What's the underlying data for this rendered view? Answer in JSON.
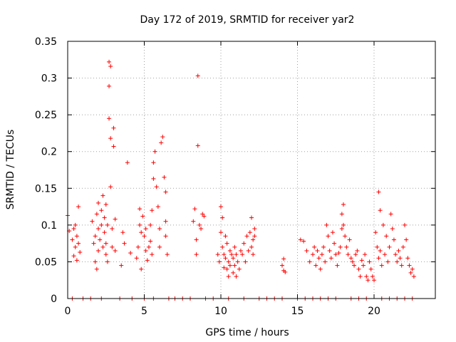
{
  "chart_data": {
    "type": "scatter",
    "title": "Day 172 of 2019, SRMTID for receiver yar2",
    "xlabel": "GPS time / hours",
    "ylabel": "SRMTID / TECUs",
    "xlim": [
      0,
      24
    ],
    "ylim": [
      0,
      0.35
    ],
    "grid": true,
    "marker": "plus",
    "color": "#ff0000",
    "xticks": [
      0,
      5,
      10,
      15,
      20
    ],
    "xtick_labels": [
      "0",
      "5",
      "10",
      "15",
      "20"
    ],
    "yticks": [
      0,
      0.05,
      0.1,
      0.15,
      0.2,
      0.25,
      0.3,
      0.35
    ],
    "ytick_labels": [
      "0",
      "0.05",
      "0.1",
      "0.15",
      "0.2",
      "0.25",
      "0.3",
      "0.35"
    ],
    "series": [
      {
        "name": "yar2",
        "x": [
          0.0,
          0.1,
          0.3,
          0.4,
          0.4,
          0.5,
          0.5,
          0.6,
          0.6,
          0.7,
          0.7,
          0.8,
          1.6,
          1.7,
          1.8,
          1.8,
          1.9,
          1.9,
          2.0,
          2.0,
          2.0,
          2.1,
          2.2,
          2.2,
          2.3,
          2.3,
          2.4,
          2.4,
          2.5,
          2.5,
          2.5,
          2.6,
          2.6,
          2.7,
          2.7,
          2.7,
          2.8,
          2.8,
          2.8,
          2.9,
          2.9,
          3.0,
          3.0,
          3.1,
          3.1,
          3.5,
          3.6,
          3.7,
          3.9,
          4.1,
          4.5,
          4.6,
          4.7,
          4.7,
          4.8,
          4.8,
          4.9,
          5.0,
          5.1,
          5.1,
          5.2,
          5.3,
          5.4,
          5.4,
          5.5,
          5.5,
          5.6,
          5.6,
          5.7,
          5.8,
          5.9,
          6.0,
          6.0,
          6.1,
          6.2,
          6.3,
          6.4,
          6.4,
          6.4,
          6.5,
          8.2,
          8.3,
          8.4,
          8.4,
          8.5,
          8.5,
          8.6,
          8.7,
          8.8,
          8.9,
          9.8,
          9.9,
          10.0,
          10.0,
          10.1,
          10.1,
          10.2,
          10.2,
          10.3,
          10.3,
          10.4,
          10.4,
          10.5,
          10.5,
          10.6,
          10.6,
          10.7,
          10.8,
          10.8,
          10.9,
          10.9,
          11.0,
          11.0,
          11.1,
          11.2,
          11.3,
          11.4,
          11.5,
          11.6,
          11.7,
          11.8,
          11.9,
          12.0,
          12.0,
          12.1,
          12.1,
          12.2,
          12.2,
          14.0,
          14.1,
          14.1,
          14.2,
          15.2,
          15.4,
          15.6,
          15.8,
          16.0,
          16.1,
          16.2,
          16.3,
          16.4,
          16.5,
          16.6,
          16.7,
          16.8,
          16.9,
          17.0,
          17.1,
          17.2,
          17.3,
          17.4,
          17.5,
          17.6,
          17.7,
          17.8,
          17.9,
          17.9,
          18.0,
          18.0,
          18.1,
          18.2,
          18.3,
          18.4,
          18.5,
          18.6,
          18.7,
          18.8,
          18.9,
          19.0,
          19.1,
          19.2,
          19.3,
          19.4,
          19.5,
          19.6,
          19.7,
          19.8,
          19.9,
          20.0,
          20.1,
          20.2,
          20.3,
          20.3,
          20.4,
          20.4,
          20.5,
          20.6,
          20.7,
          20.8,
          20.9,
          21.0,
          21.1,
          21.2,
          21.3,
          21.4,
          21.5,
          21.6,
          21.7,
          21.8,
          21.9,
          22.0,
          22.1,
          22.2,
          22.3,
          22.4,
          22.5,
          22.6,
          0.3,
          1.0,
          1.5,
          2.2,
          3.4,
          4.2,
          5.0,
          5.6,
          6.6,
          7.0,
          7.5,
          8.0,
          9.0,
          9.5,
          10.5,
          11.5,
          12.5,
          13.0,
          13.5,
          14.0,
          15.0,
          15.5,
          16.0,
          16.5,
          17.0,
          17.5,
          18.5,
          19.0,
          19.5,
          20.5,
          21.0,
          21.5,
          22.0,
          22.5
        ],
        "y": [
          0.113,
          0.092,
          0.08,
          0.058,
          0.095,
          0.07,
          0.1,
          0.085,
          0.052,
          0.125,
          0.075,
          0.063,
          0.105,
          0.075,
          0.05,
          0.085,
          0.04,
          0.115,
          0.095,
          0.065,
          0.13,
          0.08,
          0.12,
          0.1,
          0.07,
          0.14,
          0.09,
          0.11,
          0.06,
          0.128,
          0.075,
          0.1,
          0.05,
          0.322,
          0.289,
          0.245,
          0.316,
          0.218,
          0.152,
          0.095,
          0.07,
          0.232,
          0.207,
          0.108,
          0.065,
          0.045,
          0.09,
          0.075,
          0.185,
          0.062,
          0.055,
          0.07,
          0.1,
          0.122,
          0.09,
          0.04,
          0.112,
          0.085,
          0.065,
          0.095,
          0.052,
          0.07,
          0.1,
          0.078,
          0.06,
          0.12,
          0.163,
          0.185,
          0.2,
          0.152,
          0.125,
          0.07,
          0.095,
          0.212,
          0.22,
          0.165,
          0.145,
          0.105,
          0.085,
          0.06,
          0.105,
          0.122,
          0.08,
          0.06,
          0.303,
          0.208,
          0.1,
          0.095,
          0.115,
          0.112,
          0.06,
          0.05,
          0.125,
          0.09,
          0.07,
          0.11,
          0.06,
          0.042,
          0.085,
          0.055,
          0.04,
          0.075,
          0.05,
          0.03,
          0.065,
          0.045,
          0.06,
          0.035,
          0.055,
          0.07,
          0.045,
          0.06,
          0.03,
          0.05,
          0.04,
          0.065,
          0.06,
          0.075,
          0.05,
          0.085,
          0.065,
          0.09,
          0.07,
          0.11,
          0.06,
          0.08,
          0.085,
          0.095,
          0.045,
          0.054,
          0.038,
          0.036,
          0.08,
          0.078,
          0.065,
          0.05,
          0.06,
          0.07,
          0.045,
          0.065,
          0.055,
          0.04,
          0.06,
          0.07,
          0.05,
          0.1,
          0.085,
          0.065,
          0.055,
          0.09,
          0.075,
          0.06,
          0.045,
          0.062,
          0.07,
          0.115,
          0.095,
          0.128,
          0.1,
          0.085,
          0.07,
          0.06,
          0.08,
          0.055,
          0.05,
          0.045,
          0.06,
          0.065,
          0.04,
          0.03,
          0.052,
          0.045,
          0.06,
          0.03,
          0.025,
          0.05,
          0.04,
          0.03,
          0.025,
          0.09,
          0.07,
          0.145,
          0.055,
          0.12,
          0.065,
          0.045,
          0.1,
          0.06,
          0.085,
          0.05,
          0.07,
          0.115,
          0.095,
          0.08,
          0.06,
          0.05,
          0.065,
          0.055,
          0.045,
          0.07,
          0.1,
          0.08,
          0.055,
          0.045,
          0.035,
          0.04,
          0.03,
          0.0,
          0.0,
          0.0,
          0.0,
          0.0,
          0.0,
          0.0,
          0.0,
          0.0,
          0.0,
          0.0,
          0.0,
          0.0,
          0.0,
          0.0,
          0.0,
          0.0,
          0.0,
          0.0,
          0.0,
          0.0,
          0.0,
          0.0,
          0.0,
          0.0,
          0.0,
          0.0,
          0.0,
          0.0,
          0.0,
          0.0,
          0.0,
          0.0,
          0.0
        ]
      }
    ]
  }
}
